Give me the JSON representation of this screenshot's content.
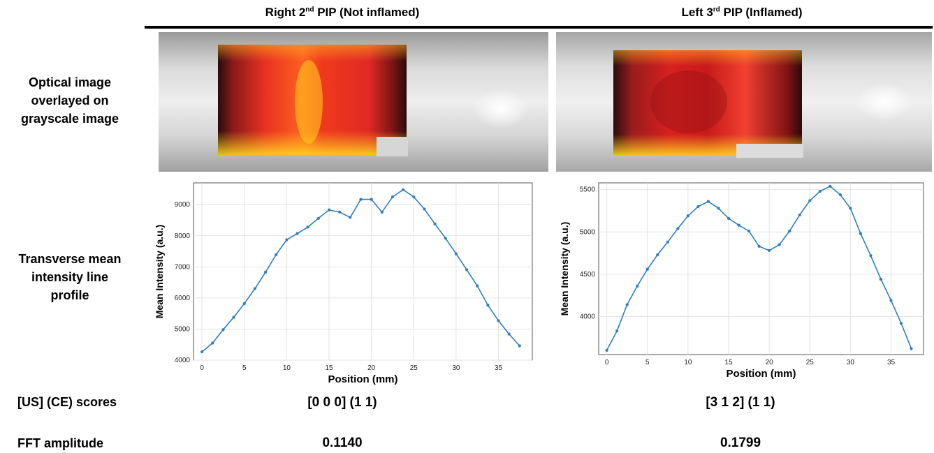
{
  "columns": [
    {
      "title_pre": "Right 2",
      "title_sup": "nd",
      "title_post": " PIP (Not inflamed)"
    },
    {
      "title_pre": "Left 3",
      "title_sup": "rd",
      "title_post": " PIP (Inflamed)"
    }
  ],
  "row_labels": {
    "optical": [
      "Optical image",
      "overlayed on",
      "grayscale image"
    ],
    "profile": [
      "Transverse mean",
      "intensity line",
      "profile"
    ],
    "scores": "[US] (CE) scores",
    "fft": "FFT  amplitude"
  },
  "scores": [
    "[0 0 0] (1 1)",
    "[3 1 2] (1 1)"
  ],
  "fft_values": [
    "0.1140",
    "0.1799"
  ],
  "chart_data": [
    {
      "type": "line",
      "xlabel": "Position (mm)",
      "ylabel": "Mean Intensity (a.u.)",
      "xlim": [
        -1,
        39
      ],
      "ylim": [
        4000,
        9700
      ],
      "xticks": [
        0,
        5,
        10,
        15,
        20,
        25,
        30,
        35
      ],
      "yticks": [
        4000,
        5000,
        6000,
        7000,
        8000,
        9000
      ],
      "grid": true,
      "color": "#2f7cc0",
      "x": [
        0,
        1.25,
        2.5,
        3.75,
        5,
        6.25,
        7.5,
        8.75,
        10,
        11.25,
        12.5,
        13.75,
        15,
        16.25,
        17.5,
        18.75,
        20,
        21.25,
        22.5,
        23.75,
        25,
        26.25,
        27.5,
        28.75,
        30,
        31.25,
        32.5,
        33.75,
        35,
        36.25,
        37.5
      ],
      "y": [
        4270,
        4550,
        4980,
        5380,
        5820,
        6300,
        6830,
        7390,
        7870,
        8070,
        8280,
        8560,
        8830,
        8760,
        8590,
        9170,
        9170,
        8760,
        9250,
        9480,
        9250,
        8860,
        8380,
        7920,
        7420,
        6910,
        6390,
        5770,
        5270,
        4840,
        4460
      ]
    },
    {
      "type": "line",
      "xlabel": "Position (mm)",
      "ylabel": "Mean Intensity (a.u.)",
      "xlim": [
        -1,
        39
      ],
      "ylim": [
        3550,
        5580
      ],
      "xticks": [
        0,
        5,
        10,
        15,
        20,
        25,
        30,
        35
      ],
      "yticks": [
        4000,
        4500,
        5000,
        5500
      ],
      "grid": true,
      "color": "#2f7cc0",
      "x": [
        0,
        1.25,
        2.5,
        3.75,
        5,
        6.25,
        7.5,
        8.75,
        10,
        11.25,
        12.5,
        13.75,
        15,
        16.25,
        17.5,
        18.75,
        20,
        21.25,
        22.5,
        23.75,
        25,
        26.25,
        27.5,
        28.75,
        30,
        31.25,
        32.5,
        33.75,
        35,
        36.25,
        37.5
      ],
      "y": [
        3600,
        3830,
        4140,
        4360,
        4560,
        4730,
        4880,
        5040,
        5190,
        5300,
        5360,
        5280,
        5160,
        5080,
        5010,
        4830,
        4780,
        4850,
        5010,
        5200,
        5370,
        5480,
        5540,
        5440,
        5280,
        4980,
        4720,
        4440,
        4190,
        3920,
        3620
      ]
    }
  ]
}
